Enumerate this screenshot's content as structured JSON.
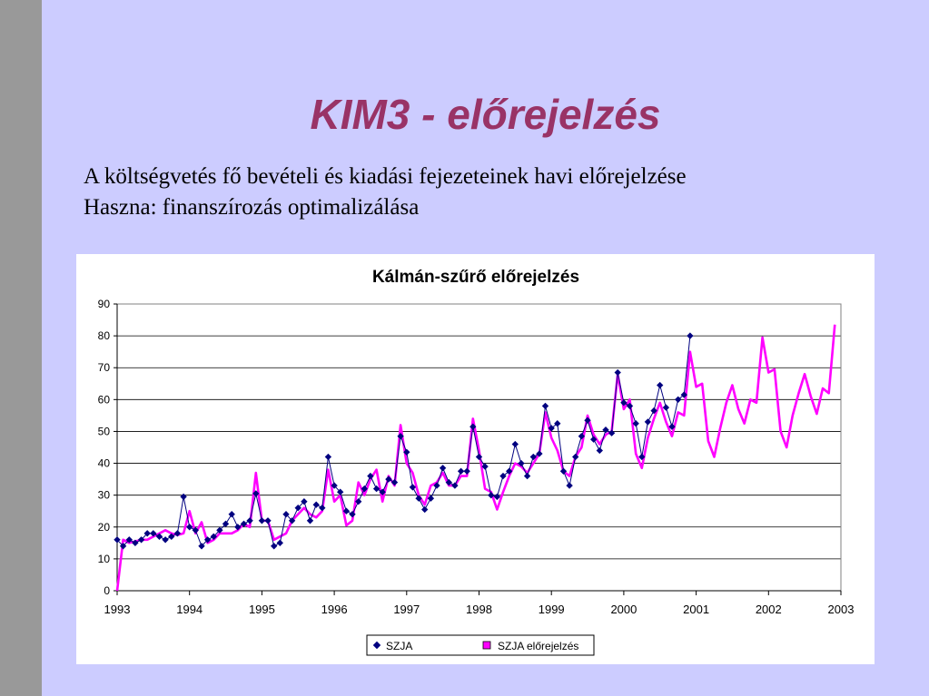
{
  "slide": {
    "title": "KIM3 - előrejelzés",
    "line1": "A költségvetés fő bevételi és kiadási fejezeteinek havi előrejelzése",
    "line2": "Haszna: finanszírozás optimalizálása"
  },
  "colors": {
    "background": "#ccccff",
    "leftbar": "#999999",
    "title": "#993366",
    "szja": "#000080",
    "forecast": "#ff00ff"
  },
  "chart_data": {
    "type": "line",
    "title": "Kálmán-szűrő előrejelzés",
    "xlabel": "",
    "ylabel": "",
    "xlim": [
      1993,
      2003
    ],
    "ylim": [
      0,
      90
    ],
    "yticks": [
      0,
      10,
      20,
      30,
      40,
      50,
      60,
      70,
      80,
      90
    ],
    "xticks": [
      "1993",
      "1994",
      "1995",
      "1996",
      "1997",
      "1998",
      "1999",
      "2000",
      "2001",
      "2002",
      "2003"
    ],
    "grid": true,
    "legend_position": "bottom",
    "series": [
      {
        "name": "SZJA",
        "color": "#000080",
        "marker": "diamond",
        "start": 1993,
        "step": 0.08333,
        "values": [
          16,
          14,
          16,
          15,
          16,
          18,
          18,
          17,
          16,
          17,
          18,
          29.5,
          20,
          19,
          14,
          16,
          17,
          19,
          21,
          24,
          20,
          21,
          22,
          30.5,
          22,
          22,
          14,
          15,
          24,
          22,
          26,
          28,
          22,
          27,
          26,
          42,
          33,
          31,
          25,
          24,
          28,
          32,
          36,
          32,
          31,
          35,
          34,
          48.5,
          43.5,
          32.5,
          29,
          25.5,
          29,
          33,
          38.5,
          34,
          33,
          37.5,
          37.5,
          51.5,
          42,
          39,
          30,
          29.5,
          36,
          37.5,
          46,
          40,
          36,
          42,
          43,
          58,
          51,
          52.5,
          37.5,
          33,
          42,
          48.5,
          53.5,
          47.5,
          44,
          50.5,
          49.5,
          68.5,
          59,
          58,
          52.5,
          42,
          53,
          56.5,
          64.5,
          57.5,
          51.5,
          60,
          61.5,
          80
        ]
      },
      {
        "name": "SZJA előrejelzés",
        "color": "#ff00ff",
        "start": 1993,
        "step": 0.08333,
        "values": [
          0,
          16,
          15,
          15.5,
          16,
          16,
          17,
          18,
          19,
          18,
          17.5,
          18,
          25,
          18,
          21.5,
          15,
          16,
          18,
          18,
          18,
          19,
          21,
          20,
          37,
          22,
          22,
          16,
          17,
          18,
          22,
          24,
          26,
          24,
          23,
          25,
          38,
          28,
          30,
          20.5,
          22,
          34,
          30,
          35,
          38,
          28,
          36,
          33,
          52,
          40,
          37,
          30,
          27,
          33,
          34,
          37,
          33,
          33,
          36,
          36,
          54,
          44,
          32,
          31,
          25.5,
          31,
          36,
          40,
          39,
          37,
          40,
          43,
          56,
          48,
          44,
          37.5,
          36,
          42,
          45,
          55,
          49,
          46,
          49,
          50,
          68,
          57,
          60,
          43,
          38.5,
          48,
          54,
          59,
          53,
          48.5,
          56,
          55,
          75,
          64,
          65,
          47,
          42,
          51,
          59,
          64.5,
          57,
          52.5,
          60,
          59,
          79.5,
          68.5,
          69.5,
          50,
          45,
          55,
          62,
          68,
          61,
          55.5,
          63.5,
          62,
          83.5
        ]
      }
    ]
  }
}
